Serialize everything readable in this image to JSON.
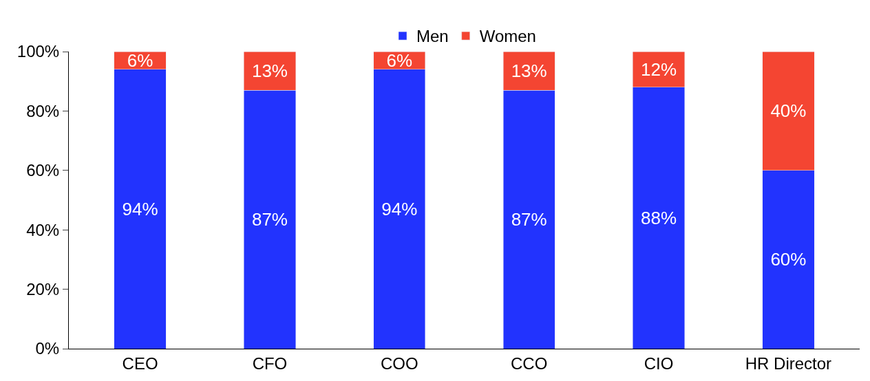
{
  "chart_data": {
    "type": "bar",
    "stacked": true,
    "categories": [
      "CEO",
      "CFO",
      "COO",
      "CCO",
      "CIO",
      "HR Director"
    ],
    "series": [
      {
        "name": "Men",
        "color": "#2233fe",
        "values": [
          94,
          87,
          94,
          87,
          88,
          60
        ],
        "value_labels": [
          "94%",
          "87%",
          "94%",
          "87%",
          "88%",
          "60%"
        ]
      },
      {
        "name": "Women",
        "color": "#f44532",
        "values": [
          6,
          13,
          6,
          13,
          12,
          40
        ],
        "value_labels": [
          "6%",
          "13%",
          "6%",
          "13%",
          "12%",
          "40%"
        ]
      }
    ],
    "ylim": [
      0,
      100
    ],
    "yticks": [
      {
        "value": 0,
        "label": "0%"
      },
      {
        "value": 20,
        "label": "20%"
      },
      {
        "value": 40,
        "label": "40%"
      },
      {
        "value": 60,
        "label": "60%"
      },
      {
        "value": 80,
        "label": "80%"
      },
      {
        "value": 100,
        "label": "100%"
      }
    ],
    "legend": "top"
  }
}
